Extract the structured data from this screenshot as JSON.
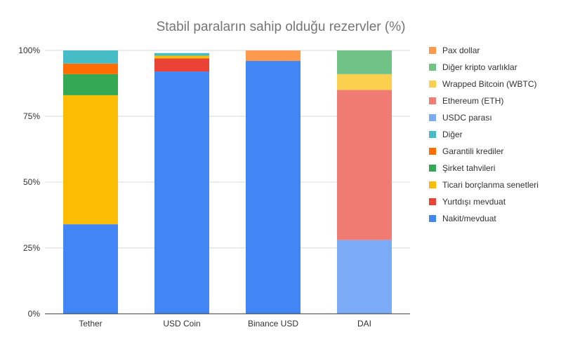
{
  "chart_data": {
    "type": "bar",
    "stacked": true,
    "title": "Stabil paraların sahip olduğu rezervler (%)",
    "xlabel": "",
    "ylabel": "",
    "ylim": [
      0,
      100
    ],
    "y_ticks": [
      "0%",
      "25%",
      "50%",
      "75%",
      "100%"
    ],
    "categories": [
      "Tether",
      "USD Coin",
      "Binance USD",
      "DAI"
    ],
    "grid": true,
    "legend_position": "right",
    "series": [
      {
        "name": "Nakit/mevduat",
        "color": "#4285F4",
        "values": [
          34,
          92,
          96,
          0
        ]
      },
      {
        "name": "Yurtdışı mevduat",
        "color": "#EA4335",
        "values": [
          0,
          5,
          0,
          0
        ]
      },
      {
        "name": "Ticari borçlanma senetleri",
        "color": "#FBBC04",
        "values": [
          49,
          1,
          0,
          0
        ]
      },
      {
        "name": "Şirket tahvileri",
        "color": "#34A853",
        "values": [
          8,
          0,
          0,
          0
        ]
      },
      {
        "name": "Garantili krediler",
        "color": "#FF6D01",
        "values": [
          4,
          0,
          0,
          0
        ]
      },
      {
        "name": "Diğer",
        "color": "#46BDC6",
        "values": [
          5,
          1,
          0,
          0
        ]
      },
      {
        "name": "USDC parası",
        "color": "#7BAAF7",
        "values": [
          0,
          0,
          0,
          28
        ]
      },
      {
        "name": "Ethereum (ETH)",
        "color": "#F07B72",
        "values": [
          0,
          0,
          0,
          57
        ]
      },
      {
        "name": "Wrapped Bitcoin (WBTC)",
        "color": "#FCD04F",
        "values": [
          0,
          0,
          0,
          6
        ]
      },
      {
        "name": "Diğer kripto varlıklar",
        "color": "#71C287",
        "values": [
          0,
          0,
          0,
          9
        ]
      },
      {
        "name": "Pax dollar",
        "color": "#FF994D",
        "values": [
          0,
          0,
          4,
          0
        ]
      }
    ]
  }
}
